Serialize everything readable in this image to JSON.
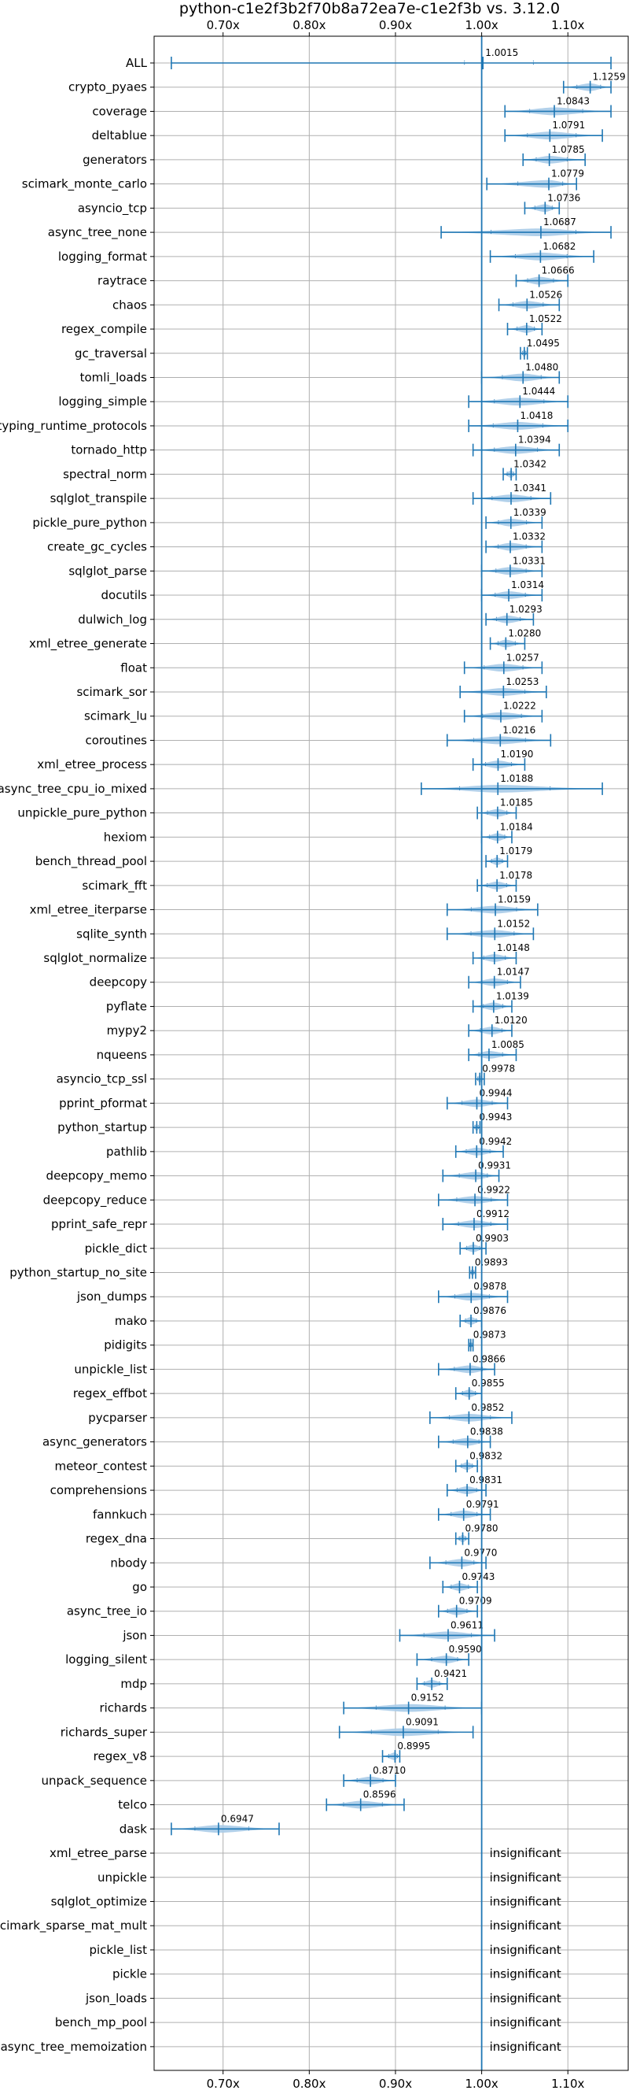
{
  "chart_data": {
    "type": "violin",
    "title": "python-c1e2f3b2f70b8a72ea7e-c1e2f3b vs. 3.12.0",
    "xlim": [
      0.62,
      1.17
    ],
    "x_ticks": [
      {
        "value": 0.7,
        "label": "0.70x"
      },
      {
        "value": 0.8,
        "label": "0.80x"
      },
      {
        "value": 0.9,
        "label": "0.90x"
      },
      {
        "value": 1.0,
        "label": "1.00x"
      },
      {
        "value": 1.1,
        "label": "1.10x"
      }
    ],
    "reference_line": 1.0,
    "grid": true,
    "insignificant_label": "insignificant",
    "colors": {
      "violin": "#a9cbe8",
      "line": "#1f77b4",
      "grid": "#b0b0b0"
    },
    "benchmarks": [
      {
        "name": "ALL",
        "mean": 1.0015,
        "label": "1.0015",
        "min": 0.64,
        "max": 1.15,
        "width": 0.018,
        "q1": 0.98,
        "q3": 1.06
      },
      {
        "name": "crypto_pyaes",
        "mean": 1.1259,
        "label": "1.1259",
        "min": 1.095,
        "max": 1.15,
        "width": 0.16
      },
      {
        "name": "coverage",
        "mean": 1.0843,
        "label": "1.0843",
        "min": 1.027,
        "max": 1.15,
        "width": 0.16
      },
      {
        "name": "deltablue",
        "mean": 1.0791,
        "label": "1.0791",
        "min": 1.027,
        "max": 1.14,
        "width": 0.16
      },
      {
        "name": "generators",
        "mean": 1.0785,
        "label": "1.0785",
        "min": 1.048,
        "max": 1.12,
        "width": 0.16
      },
      {
        "name": "scimark_monte_carlo",
        "mean": 1.0779,
        "label": "1.0779",
        "min": 1.006,
        "max": 1.11,
        "width": 0.16
      },
      {
        "name": "asyncio_tcp",
        "mean": 1.0736,
        "label": "1.0736",
        "min": 1.05,
        "max": 1.09,
        "width": 0.16
      },
      {
        "name": "async_tree_none",
        "mean": 1.0687,
        "label": "1.0687",
        "min": 0.953,
        "max": 1.15,
        "width": 0.16
      },
      {
        "name": "logging_format",
        "mean": 1.0682,
        "label": "1.0682",
        "min": 1.01,
        "max": 1.13,
        "width": 0.16
      },
      {
        "name": "raytrace",
        "mean": 1.0666,
        "label": "1.0666",
        "min": 1.04,
        "max": 1.1,
        "width": 0.16
      },
      {
        "name": "chaos",
        "mean": 1.0526,
        "label": "1.0526",
        "min": 1.02,
        "max": 1.09,
        "width": 0.16
      },
      {
        "name": "regex_compile",
        "mean": 1.0522,
        "label": "1.0522",
        "min": 1.03,
        "max": 1.07,
        "width": 0.16
      },
      {
        "name": "gc_traversal",
        "mean": 1.0495,
        "label": "1.0495",
        "min": 1.045,
        "max": 1.053,
        "width": 0.16
      },
      {
        "name": "tomli_loads",
        "mean": 1.048,
        "label": "1.0480",
        "min": 1.0,
        "max": 1.09,
        "width": 0.16
      },
      {
        "name": "logging_simple",
        "mean": 1.0444,
        "label": "1.0444",
        "min": 0.985,
        "max": 1.1,
        "width": 0.16
      },
      {
        "name": "typing_runtime_protocols",
        "mean": 1.0418,
        "label": "1.0418",
        "min": 0.985,
        "max": 1.1,
        "width": 0.16
      },
      {
        "name": "tornado_http",
        "mean": 1.0394,
        "label": "1.0394",
        "min": 0.99,
        "max": 1.09,
        "width": 0.16
      },
      {
        "name": "spectral_norm",
        "mean": 1.0342,
        "label": "1.0342",
        "min": 1.025,
        "max": 1.04,
        "width": 0.16
      },
      {
        "name": "sqlglot_transpile",
        "mean": 1.0341,
        "label": "1.0341",
        "min": 0.99,
        "max": 1.08,
        "width": 0.16
      },
      {
        "name": "pickle_pure_python",
        "mean": 1.0339,
        "label": "1.0339",
        "min": 1.005,
        "max": 1.07,
        "width": 0.16
      },
      {
        "name": "create_gc_cycles",
        "mean": 1.0332,
        "label": "1.0332",
        "min": 1.005,
        "max": 1.07,
        "width": 0.16
      },
      {
        "name": "sqlglot_parse",
        "mean": 1.0331,
        "label": "1.0331",
        "min": 1.0,
        "max": 1.07,
        "width": 0.16
      },
      {
        "name": "docutils",
        "mean": 1.0314,
        "label": "1.0314",
        "min": 1.0,
        "max": 1.07,
        "width": 0.16
      },
      {
        "name": "dulwich_log",
        "mean": 1.0293,
        "label": "1.0293",
        "min": 1.005,
        "max": 1.06,
        "width": 0.16
      },
      {
        "name": "xml_etree_generate",
        "mean": 1.028,
        "label": "1.0280",
        "min": 1.01,
        "max": 1.05,
        "width": 0.16
      },
      {
        "name": "float",
        "mean": 1.0257,
        "label": "1.0257",
        "min": 0.98,
        "max": 1.07,
        "width": 0.16
      },
      {
        "name": "scimark_sor",
        "mean": 1.0253,
        "label": "1.0253",
        "min": 0.975,
        "max": 1.075,
        "width": 0.16
      },
      {
        "name": "scimark_lu",
        "mean": 1.0222,
        "label": "1.0222",
        "min": 0.98,
        "max": 1.07,
        "width": 0.16
      },
      {
        "name": "coroutines",
        "mean": 1.0216,
        "label": "1.0216",
        "min": 0.96,
        "max": 1.08,
        "width": 0.16
      },
      {
        "name": "xml_etree_process",
        "mean": 1.019,
        "label": "1.0190",
        "min": 0.99,
        "max": 1.05,
        "width": 0.16
      },
      {
        "name": "async_tree_cpu_io_mixed",
        "mean": 1.0188,
        "label": "1.0188",
        "min": 0.93,
        "max": 1.14,
        "width": 0.16
      },
      {
        "name": "unpickle_pure_python",
        "mean": 1.0185,
        "label": "1.0185",
        "min": 0.995,
        "max": 1.04,
        "width": 0.16
      },
      {
        "name": "hexiom",
        "mean": 1.0184,
        "label": "1.0184",
        "min": 1.0,
        "max": 1.035,
        "width": 0.16
      },
      {
        "name": "bench_thread_pool",
        "mean": 1.0179,
        "label": "1.0179",
        "min": 1.005,
        "max": 1.03,
        "width": 0.16
      },
      {
        "name": "scimark_fft",
        "mean": 1.0178,
        "label": "1.0178",
        "min": 0.995,
        "max": 1.04,
        "width": 0.16
      },
      {
        "name": "xml_etree_iterparse",
        "mean": 1.0159,
        "label": "1.0159",
        "min": 0.96,
        "max": 1.065,
        "width": 0.16
      },
      {
        "name": "sqlite_synth",
        "mean": 1.0152,
        "label": "1.0152",
        "min": 0.96,
        "max": 1.06,
        "width": 0.16
      },
      {
        "name": "sqlglot_normalize",
        "mean": 1.0148,
        "label": "1.0148",
        "min": 0.99,
        "max": 1.04,
        "width": 0.16
      },
      {
        "name": "deepcopy",
        "mean": 1.0147,
        "label": "1.0147",
        "min": 0.985,
        "max": 1.045,
        "width": 0.16
      },
      {
        "name": "pyflate",
        "mean": 1.0139,
        "label": "1.0139",
        "min": 0.99,
        "max": 1.035,
        "width": 0.16
      },
      {
        "name": "mypy2",
        "mean": 1.012,
        "label": "1.0120",
        "min": 0.985,
        "max": 1.035,
        "width": 0.16
      },
      {
        "name": "nqueens",
        "mean": 1.0085,
        "label": "1.0085",
        "min": 0.985,
        "max": 1.04,
        "width": 0.16
      },
      {
        "name": "asyncio_tcp_ssl",
        "mean": 0.9978,
        "label": "0.9978",
        "min": 0.993,
        "max": 1.003,
        "width": 0.16
      },
      {
        "name": "pprint_pformat",
        "mean": 0.9944,
        "label": "0.9944",
        "min": 0.96,
        "max": 1.03,
        "width": 0.16
      },
      {
        "name": "python_startup",
        "mean": 0.9943,
        "label": "0.9943",
        "min": 0.99,
        "max": 0.998,
        "width": 0.16
      },
      {
        "name": "pathlib",
        "mean": 0.9942,
        "label": "0.9942",
        "min": 0.97,
        "max": 1.025,
        "width": 0.16
      },
      {
        "name": "deepcopy_memo",
        "mean": 0.9931,
        "label": "0.9931",
        "min": 0.955,
        "max": 1.02,
        "width": 0.16
      },
      {
        "name": "deepcopy_reduce",
        "mean": 0.9922,
        "label": "0.9922",
        "min": 0.95,
        "max": 1.03,
        "width": 0.16
      },
      {
        "name": "pprint_safe_repr",
        "mean": 0.9912,
        "label": "0.9912",
        "min": 0.955,
        "max": 1.03,
        "width": 0.16
      },
      {
        "name": "pickle_dict",
        "mean": 0.9903,
        "label": "0.9903",
        "min": 0.975,
        "max": 1.005,
        "width": 0.16
      },
      {
        "name": "python_startup_no_site",
        "mean": 0.9893,
        "label": "0.9893",
        "min": 0.986,
        "max": 0.993,
        "width": 0.16
      },
      {
        "name": "json_dumps",
        "mean": 0.9878,
        "label": "0.9878",
        "min": 0.95,
        "max": 1.03,
        "width": 0.16
      },
      {
        "name": "mako",
        "mean": 0.9876,
        "label": "0.9876",
        "min": 0.975,
        "max": 1.0,
        "width": 0.16
      },
      {
        "name": "pidigits",
        "mean": 0.9873,
        "label": "0.9873",
        "min": 0.985,
        "max": 0.99,
        "width": 0.16
      },
      {
        "name": "unpickle_list",
        "mean": 0.9866,
        "label": "0.9866",
        "min": 0.95,
        "max": 1.015,
        "width": 0.16
      },
      {
        "name": "regex_effbot",
        "mean": 0.9855,
        "label": "0.9855",
        "min": 0.97,
        "max": 1.0,
        "width": 0.16
      },
      {
        "name": "pycparser",
        "mean": 0.9852,
        "label": "0.9852",
        "min": 0.94,
        "max": 1.035,
        "width": 0.16
      },
      {
        "name": "async_generators",
        "mean": 0.9838,
        "label": "0.9838",
        "min": 0.95,
        "max": 1.01,
        "width": 0.16
      },
      {
        "name": "meteor_contest",
        "mean": 0.9832,
        "label": "0.9832",
        "min": 0.97,
        "max": 0.995,
        "width": 0.16
      },
      {
        "name": "comprehensions",
        "mean": 0.9831,
        "label": "0.9831",
        "min": 0.96,
        "max": 1.005,
        "width": 0.16
      },
      {
        "name": "fannkuch",
        "mean": 0.9791,
        "label": "0.9791",
        "min": 0.95,
        "max": 1.01,
        "width": 0.16
      },
      {
        "name": "regex_dna",
        "mean": 0.978,
        "label": "0.9780",
        "min": 0.97,
        "max": 0.985,
        "width": 0.16
      },
      {
        "name": "nbody",
        "mean": 0.977,
        "label": "0.9770",
        "min": 0.94,
        "max": 1.005,
        "width": 0.16
      },
      {
        "name": "go",
        "mean": 0.9743,
        "label": "0.9743",
        "min": 0.955,
        "max": 0.995,
        "width": 0.16
      },
      {
        "name": "async_tree_io",
        "mean": 0.9709,
        "label": "0.9709",
        "min": 0.95,
        "max": 0.995,
        "width": 0.16
      },
      {
        "name": "json",
        "mean": 0.9611,
        "label": "0.9611",
        "min": 0.905,
        "max": 1.015,
        "width": 0.16
      },
      {
        "name": "logging_silent",
        "mean": 0.959,
        "label": "0.9590",
        "min": 0.925,
        "max": 0.985,
        "width": 0.16
      },
      {
        "name": "mdp",
        "mean": 0.9421,
        "label": "0.9421",
        "min": 0.925,
        "max": 0.96,
        "width": 0.16
      },
      {
        "name": "richards",
        "mean": 0.9152,
        "label": "0.9152",
        "min": 0.84,
        "max": 1.0,
        "width": 0.16
      },
      {
        "name": "richards_super",
        "mean": 0.9091,
        "label": "0.9091",
        "min": 0.835,
        "max": 0.99,
        "width": 0.16
      },
      {
        "name": "regex_v8",
        "mean": 0.8995,
        "label": "0.8995",
        "min": 0.885,
        "max": 0.905,
        "width": 0.16
      },
      {
        "name": "unpack_sequence",
        "mean": 0.871,
        "label": "0.8710",
        "min": 0.84,
        "max": 0.9,
        "width": 0.16
      },
      {
        "name": "telco",
        "mean": 0.8596,
        "label": "0.8596",
        "min": 0.82,
        "max": 0.91,
        "width": 0.16
      },
      {
        "name": "dask",
        "mean": 0.6947,
        "label": "0.6947",
        "min": 0.64,
        "max": 0.765,
        "width": 0.16
      },
      {
        "name": "xml_etree_parse",
        "insignificant": true
      },
      {
        "name": "unpickle",
        "insignificant": true
      },
      {
        "name": "sqlglot_optimize",
        "insignificant": true
      },
      {
        "name": "scimark_sparse_mat_mult",
        "insignificant": true
      },
      {
        "name": "pickle_list",
        "insignificant": true
      },
      {
        "name": "pickle",
        "insignificant": true
      },
      {
        "name": "json_loads",
        "insignificant": true
      },
      {
        "name": "bench_mp_pool",
        "insignificant": true
      },
      {
        "name": "async_tree_memoization",
        "insignificant": true
      }
    ]
  }
}
